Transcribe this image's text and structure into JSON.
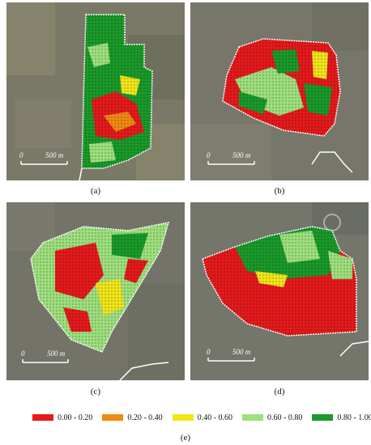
{
  "panels": [
    {
      "id": "a",
      "caption": "(a)",
      "scale_label": "500 m",
      "zero_label": "0"
    },
    {
      "id": "b",
      "caption": "(b)",
      "scale_label": "500 m",
      "zero_label": "0"
    },
    {
      "id": "c",
      "caption": "(c)",
      "scale_label": "500 m",
      "zero_label": "0"
    },
    {
      "id": "d",
      "caption": "(d)",
      "scale_label": "500 m",
      "zero_label": "0"
    }
  ],
  "legend": {
    "caption": "(e)",
    "classes": [
      {
        "label": "0.00 - 0.20",
        "color": "#e41a1c"
      },
      {
        "label": "0.20 - 0.40",
        "color": "#f08a12"
      },
      {
        "label": "0.40 - 0.60",
        "color": "#f2e51a"
      },
      {
        "label": "0.60 - 0.80",
        "color": "#9ee07e"
      },
      {
        "label": "0.80 - 1.00",
        "color": "#1a9a2a"
      }
    ]
  },
  "colors": {
    "background_satellite": "#6f6d5f",
    "boundary": "#ffffff"
  }
}
